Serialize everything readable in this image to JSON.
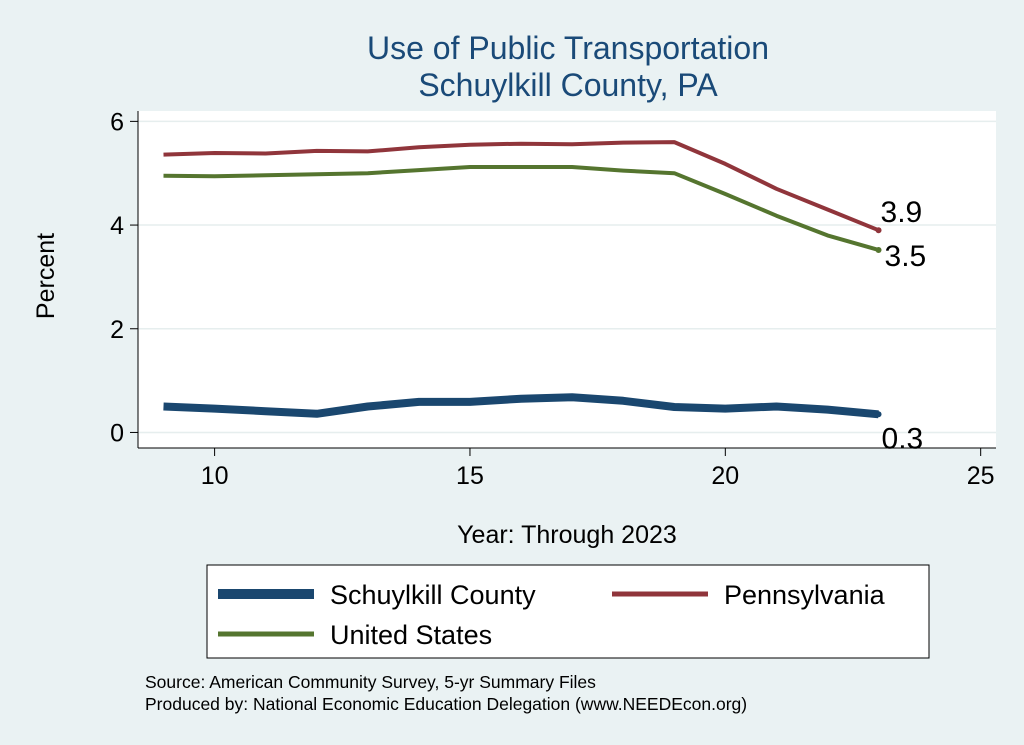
{
  "chart_data": {
    "type": "line",
    "title": [
      "Use of Public Transportation",
      "Schuylkill County, PA"
    ],
    "xlabel": "Year: Through 2023",
    "ylabel": "Percent",
    "xlim": [
      8.5,
      25.3
    ],
    "ylim": [
      -0.3,
      6.2
    ],
    "xticks": [
      10,
      15,
      20,
      25
    ],
    "yticks": [
      0,
      2,
      4,
      6
    ],
    "grid": true,
    "series": [
      {
        "name": "Schuylkill County",
        "color": "#1a476f",
        "x": [
          9,
          10,
          11,
          12,
          13,
          14,
          15,
          16,
          17,
          18,
          19,
          20,
          21,
          22,
          23
        ],
        "values": [
          0.5,
          0.46,
          0.41,
          0.36,
          0.5,
          0.59,
          0.59,
          0.65,
          0.68,
          0.61,
          0.49,
          0.46,
          0.5,
          0.44,
          0.35
        ],
        "end_label": "0.3"
      },
      {
        "name": "Pennsylvania",
        "color": "#90353b",
        "x": [
          9,
          10,
          11,
          12,
          13,
          14,
          15,
          16,
          17,
          18,
          19,
          20,
          21,
          22,
          23
        ],
        "values": [
          5.36,
          5.39,
          5.38,
          5.43,
          5.42,
          5.5,
          5.55,
          5.57,
          5.56,
          5.59,
          5.6,
          5.18,
          4.7,
          4.3,
          3.9
        ],
        "end_label": "3.9"
      },
      {
        "name": "United States",
        "color": "#55752f",
        "x": [
          9,
          10,
          11,
          12,
          13,
          14,
          15,
          16,
          17,
          18,
          19,
          20,
          21,
          22,
          23
        ],
        "values": [
          4.95,
          4.94,
          4.96,
          4.98,
          5.0,
          5.06,
          5.12,
          5.12,
          5.12,
          5.05,
          5.0,
          4.6,
          4.18,
          3.8,
          3.52
        ],
        "end_label": "3.5"
      }
    ],
    "legend": {
      "placement": "bottom"
    },
    "notes": [
      "Source: American Community Survey, 5-yr Summary Files",
      "Produced by: National Economic Education Delegation (www.NEEDEcon.org)"
    ]
  }
}
